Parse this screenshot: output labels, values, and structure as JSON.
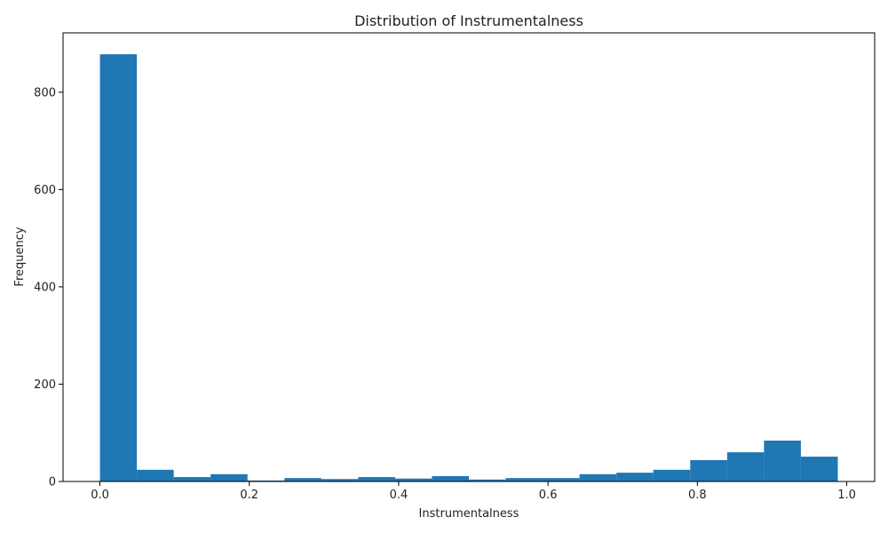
{
  "chart_data": {
    "type": "bar",
    "title": "Distribution of Instrumentalness",
    "xlabel": "Instrumentalness",
    "ylabel": "Frequency",
    "bin_edges": [
      0.0,
      0.0494,
      0.0988,
      0.1482,
      0.1976,
      0.247,
      0.2964,
      0.3458,
      0.3952,
      0.4446,
      0.494,
      0.5434,
      0.5928,
      0.6422,
      0.6916,
      0.741,
      0.7904,
      0.8398,
      0.8892,
      0.9386,
      0.988
    ],
    "values": [
      878,
      24,
      9,
      15,
      2,
      7,
      5,
      9,
      6,
      11,
      4,
      7,
      7,
      15,
      18,
      24,
      44,
      60,
      84,
      51
    ],
    "xlim": [
      -0.0494,
      1.0374
    ],
    "ylim": [
      0,
      922
    ],
    "xticks": [
      0.0,
      0.2,
      0.4,
      0.6,
      0.8,
      1.0
    ],
    "xtick_labels": [
      "0.0",
      "0.2",
      "0.4",
      "0.6",
      "0.8",
      "1.0"
    ],
    "yticks": [
      0,
      200,
      400,
      600,
      800
    ],
    "ytick_labels": [
      "0",
      "200",
      "400",
      "600",
      "800"
    ],
    "bar_color": "#1f77b4",
    "grid": false,
    "legend": "none"
  }
}
